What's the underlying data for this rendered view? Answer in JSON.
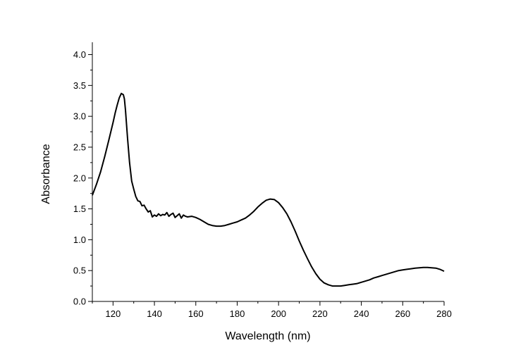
{
  "chart_data": {
    "type": "line",
    "title": "",
    "xlabel": "Wavelength (nm)",
    "ylabel": "Absorbance",
    "xlim": [
      110,
      280
    ],
    "ylim": [
      0.0,
      4.2
    ],
    "x_ticks": [
      120,
      140,
      160,
      180,
      200,
      220,
      240,
      260,
      280
    ],
    "x_tick_labels": [
      "120",
      "140",
      "160",
      "180",
      "200",
      "220",
      "240",
      "260",
      "280"
    ],
    "y_ticks": [
      0.0,
      0.5,
      1.0,
      1.5,
      2.0,
      2.5,
      3.0,
      3.5,
      4.0
    ],
    "y_tick_labels": [
      "0.0",
      "0.5",
      "1.0",
      "1.5",
      "2.0",
      "2.5",
      "3.0",
      "3.5",
      "4.0"
    ],
    "grid": false,
    "legend": "none",
    "line_color": "#000000",
    "series": [
      {
        "x": [
          110,
          112,
          114,
          116,
          118,
          120,
          121,
          122,
          123,
          124,
          125,
          125.5,
          126,
          127,
          128,
          129,
          130,
          131,
          132,
          133,
          134,
          135,
          136,
          137,
          138,
          139,
          140,
          141,
          142,
          143,
          144,
          145,
          146,
          147,
          148,
          149,
          150,
          151,
          152,
          153,
          154,
          155,
          156,
          158,
          160,
          162,
          164,
          166,
          168,
          170,
          172,
          174,
          176,
          178,
          180,
          182,
          184,
          186,
          188,
          190,
          192,
          194,
          196,
          198,
          200,
          202,
          204,
          206,
          208,
          210,
          212,
          214,
          216,
          218,
          220,
          222,
          224,
          226,
          228,
          230,
          232,
          234,
          236,
          238,
          240,
          242,
          244,
          246,
          248,
          250,
          252,
          254,
          256,
          258,
          260,
          262,
          264,
          266,
          268,
          270,
          272,
          274,
          276,
          278,
          280
        ],
        "y": [
          1.72,
          1.9,
          2.1,
          2.35,
          2.62,
          2.9,
          3.05,
          3.18,
          3.3,
          3.37,
          3.35,
          3.28,
          3.1,
          2.65,
          2.25,
          1.95,
          1.82,
          1.7,
          1.63,
          1.62,
          1.55,
          1.56,
          1.5,
          1.45,
          1.47,
          1.37,
          1.4,
          1.38,
          1.42,
          1.39,
          1.41,
          1.4,
          1.44,
          1.38,
          1.41,
          1.43,
          1.36,
          1.39,
          1.42,
          1.35,
          1.4,
          1.38,
          1.37,
          1.38,
          1.36,
          1.33,
          1.29,
          1.25,
          1.23,
          1.22,
          1.22,
          1.23,
          1.25,
          1.27,
          1.29,
          1.32,
          1.35,
          1.4,
          1.46,
          1.53,
          1.59,
          1.64,
          1.66,
          1.65,
          1.6,
          1.52,
          1.42,
          1.29,
          1.14,
          0.98,
          0.83,
          0.69,
          0.56,
          0.45,
          0.36,
          0.3,
          0.27,
          0.25,
          0.25,
          0.25,
          0.26,
          0.27,
          0.28,
          0.29,
          0.31,
          0.33,
          0.35,
          0.38,
          0.4,
          0.42,
          0.44,
          0.46,
          0.48,
          0.5,
          0.51,
          0.52,
          0.53,
          0.54,
          0.545,
          0.55,
          0.55,
          0.545,
          0.54,
          0.52,
          0.49
        ]
      }
    ]
  }
}
